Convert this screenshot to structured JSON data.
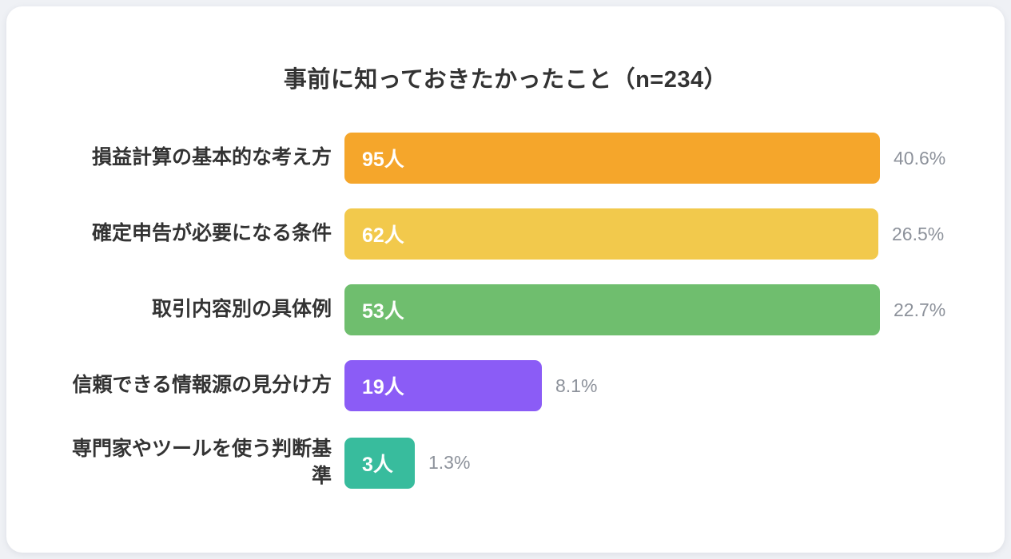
{
  "page": {
    "background_color": "#EFF1F5",
    "card_background": "#FFFFFF",
    "title_color": "#333333",
    "percent_text_color": "#8D929B"
  },
  "chart_data": {
    "type": "bar",
    "orientation": "horizontal",
    "title": "事前に知っておきたかったこと（n=234）",
    "sample_size": 234,
    "unit": "人",
    "grid": false,
    "legend": null,
    "categories": [
      "損益計算の基本的な考え方",
      "確定申告が必要になる条件",
      "取引内容別の具体例",
      "信頼できる情報源の見分け方",
      "専門家やツールを使う判断基準"
    ],
    "values": [
      95,
      62,
      53,
      19,
      3
    ],
    "percents": [
      40.6,
      26.5,
      22.7,
      8.1,
      1.3
    ],
    "rows": [
      {
        "label": "損益計算の基本的な考え方",
        "value": 95,
        "value_label": "95人",
        "percent_label": "40.6%",
        "color": "#F5A62B",
        "width_pct": 100
      },
      {
        "label": "確定申告が必要になる条件",
        "value": 62,
        "value_label": "62人",
        "percent_label": "26.5%",
        "color": "#F2C94C",
        "width_pct": 99.7
      },
      {
        "label": "取引内容別の具体例",
        "value": 53,
        "value_label": "53人",
        "percent_label": "22.7%",
        "color": "#6FBE6E",
        "width_pct": 100
      },
      {
        "label": "信頼できる情報源の見分け方",
        "value": 19,
        "value_label": "19人",
        "percent_label": "8.1%",
        "color": "#8B5CF6",
        "width_pct": 36.9
      },
      {
        "label": "専門家やツールを使う判断基準",
        "value": 3,
        "value_label": "3人",
        "percent_label": "1.3%",
        "color": "#38BC9D",
        "width_pct": 13.1
      }
    ]
  }
}
